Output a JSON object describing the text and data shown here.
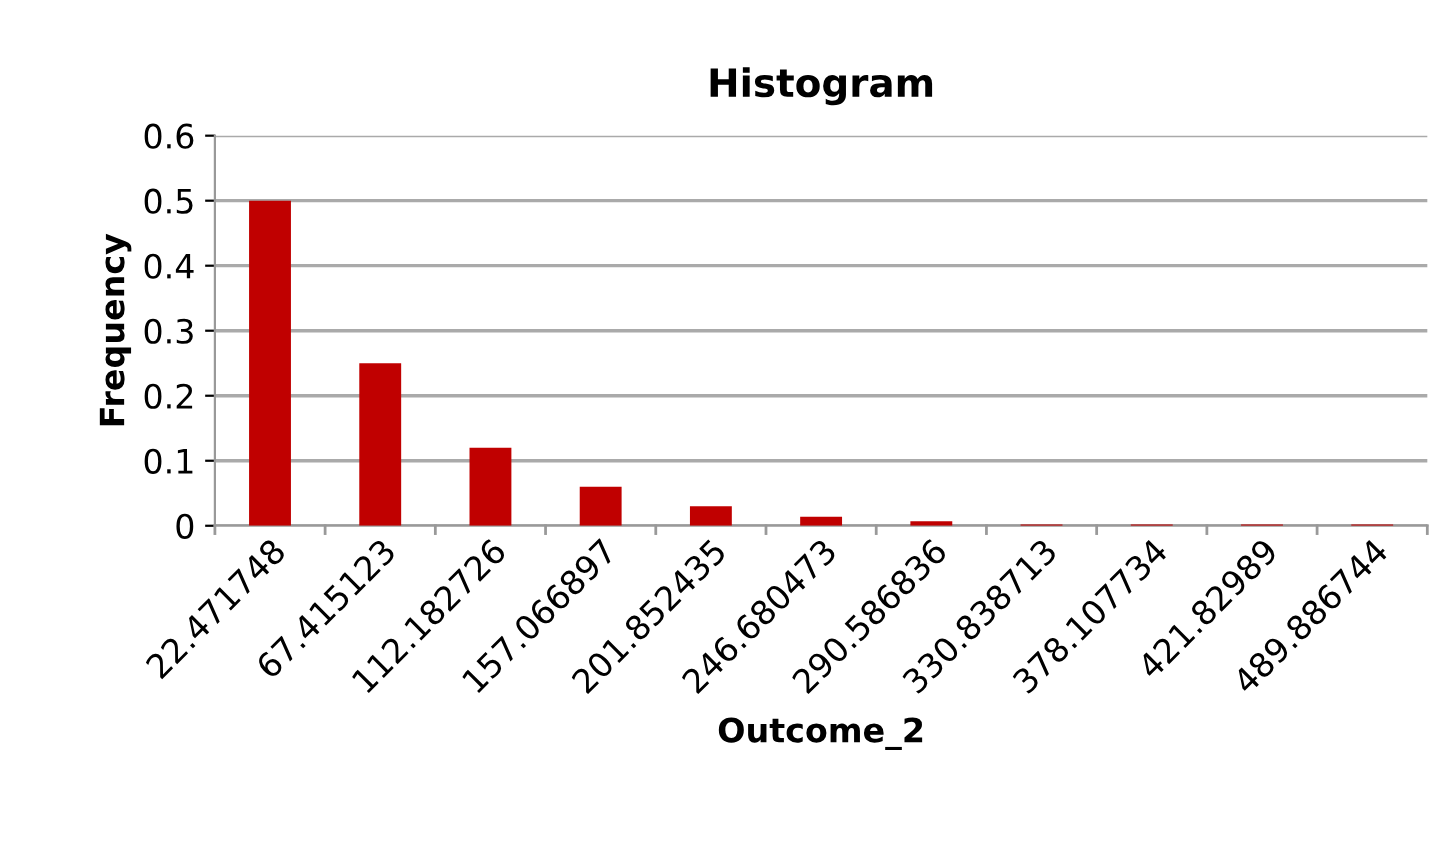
{
  "chart_data": {
    "type": "bar",
    "title": "Histogram",
    "xlabel": "Outcome_2",
    "ylabel": "Frequency",
    "categories": [
      "22.471748",
      "67.415123",
      "112.182726",
      "157.066897",
      "201.852435",
      "246.680473",
      "290.586836",
      "330.838713",
      "378.107734",
      "421.82989",
      "489.886744"
    ],
    "values": [
      0.5,
      0.25,
      0.12,
      0.06,
      0.03,
      0.014,
      0.007,
      0.002,
      0.002,
      0.002,
      0.002
    ],
    "color": "#c00000",
    "ylim": [
      0,
      0.6
    ],
    "yticks": [
      0,
      0.1,
      0.2,
      0.3,
      0.4,
      0.5,
      0.6
    ],
    "grid": "y",
    "legend": false
  }
}
